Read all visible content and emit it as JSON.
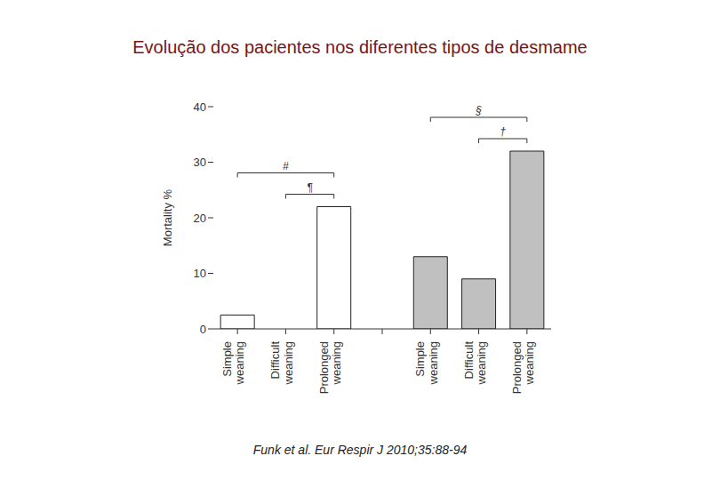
{
  "chart_data": {
    "type": "bar",
    "title": "Evolução dos pacientes nos diferentes tipos de desmame",
    "source": "Funk et al. Eur Respir J 2010;35:88-94",
    "y_label": "Mortality %",
    "categories": [
      "Simple weaning",
      "Difficult weaning",
      "Prolonged weaning",
      null,
      "Simple weaning",
      "Difficult weaning",
      "Prolonged weaning"
    ],
    "values": [
      2.5,
      0,
      22,
      null,
      13,
      9,
      32
    ],
    "colors": [
      "#ffffff",
      "#ffffff",
      "#ffffff",
      "#ffffff",
      "#c0c0c0",
      "#c0c0c0",
      "#c0c0c0"
    ],
    "ylim": [
      0,
      40
    ],
    "yticks": [
      0,
      10,
      20,
      30,
      40
    ],
    "grid": false,
    "annotations": [
      {
        "text": "#",
        "between": [
          0,
          2
        ]
      },
      {
        "text": "¶",
        "between": [
          1,
          2
        ]
      },
      {
        "text": "§",
        "between": [
          4,
          6
        ]
      },
      {
        "text": "†",
        "between": [
          5,
          6
        ]
      }
    ]
  }
}
